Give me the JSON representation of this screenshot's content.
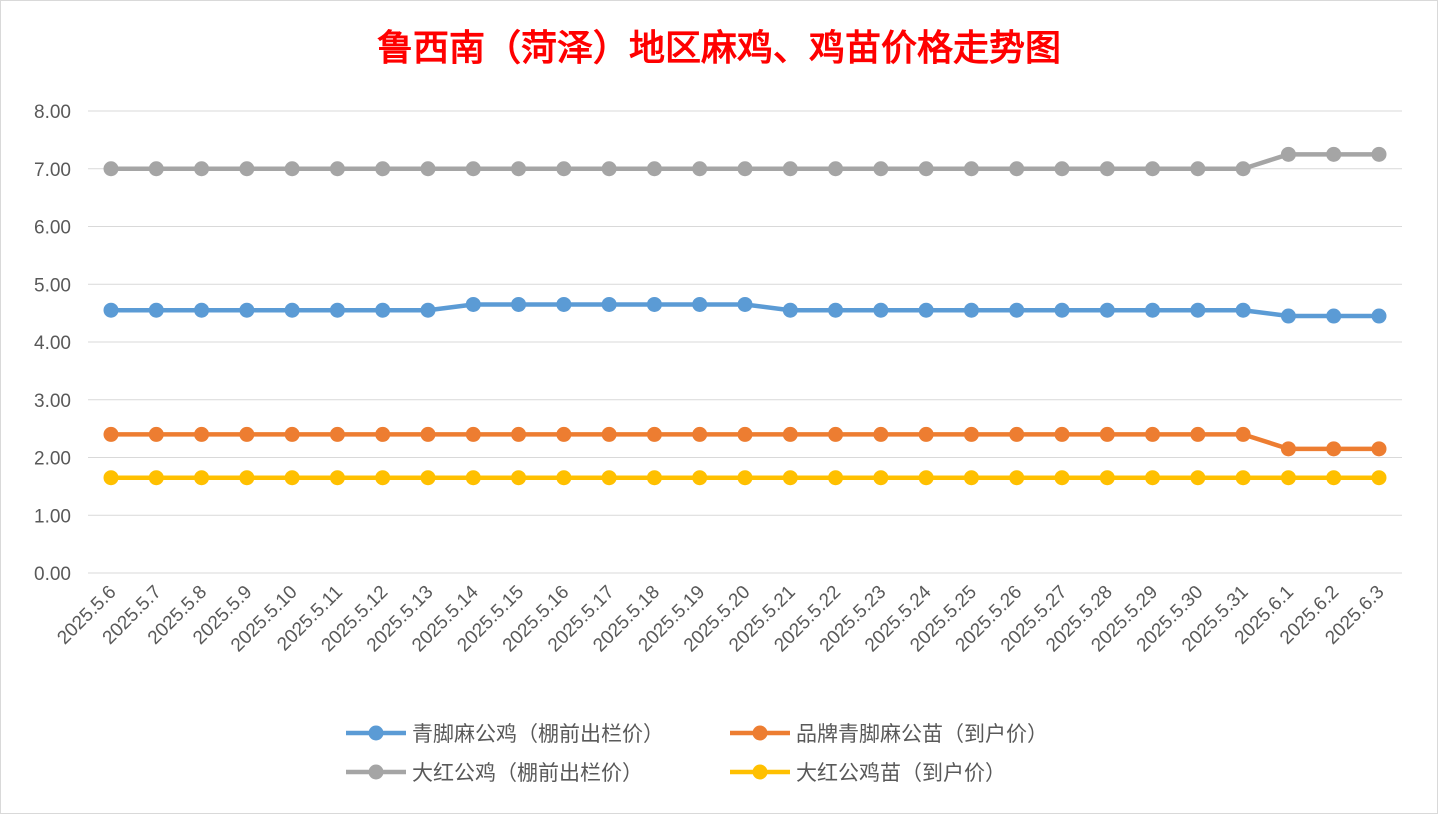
{
  "chart_data": {
    "type": "line",
    "title": "鲁西南（菏泽）地区麻鸡、鸡苗价格走势图",
    "title_color": "#ff0000",
    "xlabel": "",
    "ylabel": "",
    "ylim": [
      0,
      8
    ],
    "y_ticks": [
      "0.00",
      "1.00",
      "2.00",
      "3.00",
      "4.00",
      "5.00",
      "6.00",
      "7.00",
      "8.00"
    ],
    "grid": true,
    "legend_position": "bottom",
    "categories": [
      "2025.5.6",
      "2025.5.7",
      "2025.5.8",
      "2025.5.9",
      "2025.5.10",
      "2025.5.11",
      "2025.5.12",
      "2025.5.13",
      "2025.5.14",
      "2025.5.15",
      "2025.5.16",
      "2025.5.17",
      "2025.5.18",
      "2025.5.19",
      "2025.5.20",
      "2025.5.21",
      "2025.5.22",
      "2025.5.23",
      "2025.5.24",
      "2025.5.25",
      "2025.5.26",
      "2025.5.27",
      "2025.5.28",
      "2025.5.29",
      "2025.5.30",
      "2025.5.31",
      "2025.6.1",
      "2025.6.2",
      "2025.6.3"
    ],
    "series": [
      {
        "name": "青脚麻公鸡（棚前出栏价）",
        "color": "#5b9bd5",
        "values": [
          4.55,
          4.55,
          4.55,
          4.55,
          4.55,
          4.55,
          4.55,
          4.55,
          4.65,
          4.65,
          4.65,
          4.65,
          4.65,
          4.65,
          4.65,
          4.55,
          4.55,
          4.55,
          4.55,
          4.55,
          4.55,
          4.55,
          4.55,
          4.55,
          4.55,
          4.55,
          4.45,
          4.45,
          4.45
        ]
      },
      {
        "name": "品牌青脚麻公苗（到户价）",
        "color": "#ed7d31",
        "values": [
          2.4,
          2.4,
          2.4,
          2.4,
          2.4,
          2.4,
          2.4,
          2.4,
          2.4,
          2.4,
          2.4,
          2.4,
          2.4,
          2.4,
          2.4,
          2.4,
          2.4,
          2.4,
          2.4,
          2.4,
          2.4,
          2.4,
          2.4,
          2.4,
          2.4,
          2.4,
          2.15,
          2.15,
          2.15
        ]
      },
      {
        "name": "大红公鸡（棚前出栏价）",
        "color": "#a5a5a5",
        "values": [
          7.0,
          7.0,
          7.0,
          7.0,
          7.0,
          7.0,
          7.0,
          7.0,
          7.0,
          7.0,
          7.0,
          7.0,
          7.0,
          7.0,
          7.0,
          7.0,
          7.0,
          7.0,
          7.0,
          7.0,
          7.0,
          7.0,
          7.0,
          7.0,
          7.0,
          7.0,
          7.25,
          7.25,
          7.25
        ]
      },
      {
        "name": "大红公鸡苗（到户价）",
        "color": "#ffc000",
        "values": [
          1.65,
          1.65,
          1.65,
          1.65,
          1.65,
          1.65,
          1.65,
          1.65,
          1.65,
          1.65,
          1.65,
          1.65,
          1.65,
          1.65,
          1.65,
          1.65,
          1.65,
          1.65,
          1.65,
          1.65,
          1.65,
          1.65,
          1.65,
          1.65,
          1.65,
          1.65,
          1.65,
          1.65,
          1.65
        ]
      }
    ]
  }
}
